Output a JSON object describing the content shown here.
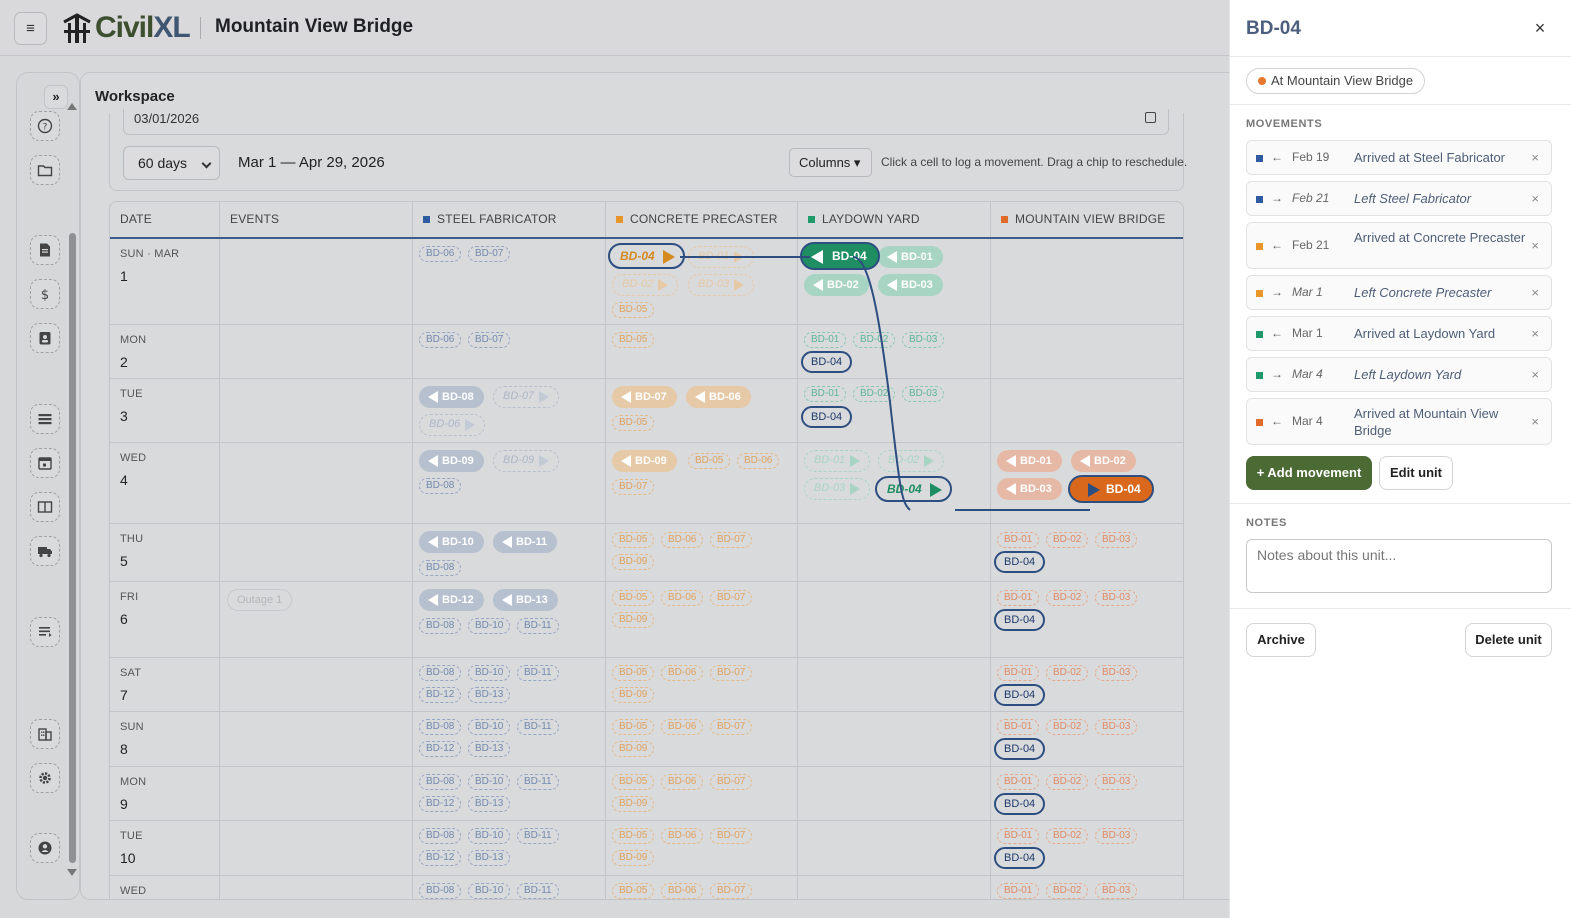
{
  "header": {
    "menu_icon": "hamburger-icon",
    "logo_civ": "Civil",
    "logo_xl": "XL",
    "project_title": "Mountain View Bridge"
  },
  "rail": {
    "expand_label": "»",
    "icons": [
      "help-icon",
      "folder-icon",
      "document-icon",
      "dollar-icon",
      "badge-icon",
      "list-icon",
      "calendar-icon",
      "book-icon",
      "truck-icon",
      "align-icon",
      "building-icon",
      "gear-icon",
      "user-icon"
    ]
  },
  "workspace": {
    "title": "Workspace",
    "date_value": "03/01/2026",
    "days_option": "60 days",
    "range_label": "Mar 1 — Apr 29, 2026",
    "columns_label": "Columns ▾",
    "hint": "Click a cell to log a movement. Drag a chip to reschedule."
  },
  "grid": {
    "headers": [
      "DATE",
      "EVENTS",
      "STEEL FABRICATOR",
      "CONCRETE PRECASTER",
      "LAYDOWN YARD",
      "MOUNTAIN VIEW BRIDGE"
    ],
    "header_colors": [
      "",
      "",
      "#2d5aa0",
      "#e8962a",
      "#1f9a6b",
      "#e06b2a"
    ],
    "rows": [
      {
        "label": "SUN · MAR",
        "num": "1"
      },
      {
        "label": "MON",
        "num": "2"
      },
      {
        "label": "TUE",
        "num": "3"
      },
      {
        "label": "WED",
        "num": "4"
      },
      {
        "label": "THU",
        "num": "5"
      },
      {
        "label": "FRI",
        "num": "6"
      },
      {
        "label": "SAT",
        "num": "7"
      },
      {
        "label": "SUN",
        "num": "8"
      },
      {
        "label": "MON",
        "num": "9"
      },
      {
        "label": "TUE",
        "num": "10"
      },
      {
        "label": "WED",
        "num": ""
      }
    ],
    "event_outage": "Outage 1",
    "units": {
      "bd01": "BD-01",
      "bd02": "BD-02",
      "bd03": "BD-03",
      "bd04": "BD-04",
      "bd05": "BD-05",
      "bd06": "BD-06",
      "bd07": "BD-07",
      "bd08": "BD-08",
      "bd09": "BD-09",
      "bd10": "BD-10",
      "bd11": "BD-11",
      "bd12": "BD-12",
      "bd13": "BD-13"
    }
  },
  "panel": {
    "title": "BD-04",
    "close": "×",
    "badge": "At Mountain View Bridge",
    "movements_label": "MOVEMENTS",
    "movements": [
      {
        "color": "#2d5aa0",
        "arrow": "←",
        "date": "Feb 19",
        "text": "Arrived at Steel Fabricator",
        "planned": false
      },
      {
        "color": "#2d5aa0",
        "arrow": "→",
        "date": "Feb 21",
        "text": "Left Steel Fabricator",
        "planned": true
      },
      {
        "color": "#e8962a",
        "arrow": "←",
        "date": "Feb 21",
        "text": "Arrived at Concrete Precaster",
        "planned": false
      },
      {
        "color": "#e8962a",
        "arrow": "→",
        "date": "Mar 1",
        "text": "Left Concrete Precaster",
        "planned": true
      },
      {
        "color": "#1f9a6b",
        "arrow": "←",
        "date": "Mar 1",
        "text": "Arrived at Laydown Yard",
        "planned": false
      },
      {
        "color": "#1f9a6b",
        "arrow": "→",
        "date": "Mar 4",
        "text": "Left Laydown Yard",
        "planned": true
      },
      {
        "color": "#e06b2a",
        "arrow": "←",
        "date": "Mar 4",
        "text": "Arrived at Mountain View Bridge",
        "planned": false
      }
    ],
    "remove": "×",
    "add_movement": "+ Add movement",
    "edit_unit": "Edit unit",
    "notes_label": "NOTES",
    "notes_placeholder": "Notes about this unit...",
    "archive": "Archive",
    "delete_unit": "Delete unit"
  }
}
